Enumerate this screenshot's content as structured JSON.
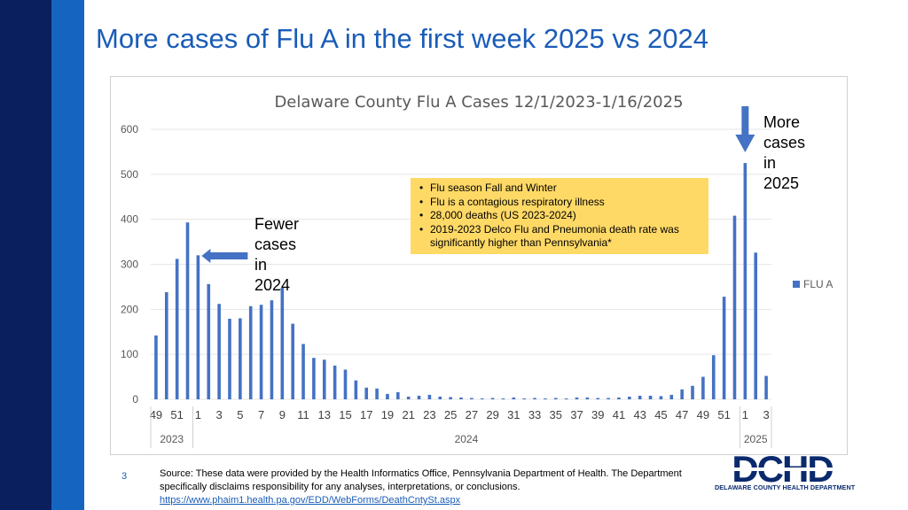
{
  "slide": {
    "title": "More cases of Flu A in the first week 2025 vs 2024",
    "page_number": "3",
    "source_text": "Source: These data were provided by the Health Informatics Office, Pennsylvania Department of Health. The Department specifically disclaims responsibility for any analyses, interpretations, or conclusions.",
    "source_link": "https://www.phaim1.health.pa.gov/EDD/WebForms/DeathCntySt.aspx",
    "logo_text": "DELAWARE COUNTY HEALTH DEPARTMENT",
    "logo_letters": "DCHD"
  },
  "callouts": {
    "fewer": [
      "Fewer",
      "cases",
      "in",
      "2024"
    ],
    "more": [
      "More",
      "cases",
      "in",
      "2025"
    ]
  },
  "info_box": {
    "items": [
      "Flu season Fall and Winter",
      "Flu is a contagious respiratory illness",
      "28,000 deaths (US 2023-2024)",
      "2019-2023 Delco Flu and Pneumonia death rate was significantly higher than Pennsylvania*"
    ]
  },
  "colors": {
    "bar": "#4472c4",
    "title": "#1a5cb8",
    "arrow": "#4472c4",
    "info_box": "#ffd966"
  },
  "chart_data": {
    "type": "bar",
    "title": "Delaware County Flu A Cases 12/1/2023-1/16/2025",
    "legend": "FLU A",
    "legend_position": "right",
    "ylim": [
      0,
      600
    ],
    "yticks": [
      0,
      100,
      200,
      300,
      400,
      500,
      600
    ],
    "weeks": [
      49,
      50,
      51,
      52,
      1,
      2,
      3,
      4,
      5,
      6,
      7,
      8,
      9,
      10,
      11,
      12,
      13,
      14,
      15,
      16,
      17,
      18,
      19,
      20,
      21,
      22,
      23,
      24,
      25,
      26,
      27,
      28,
      29,
      30,
      31,
      32,
      33,
      34,
      35,
      36,
      37,
      38,
      39,
      40,
      41,
      42,
      43,
      44,
      45,
      46,
      47,
      48,
      49,
      50,
      51,
      52,
      1,
      2,
      3
    ],
    "values": [
      142,
      238,
      312,
      393,
      320,
      256,
      212,
      179,
      180,
      207,
      210,
      220,
      248,
      168,
      123,
      92,
      88,
      75,
      66,
      42,
      26,
      24,
      12,
      16,
      6,
      8,
      10,
      6,
      5,
      4,
      3,
      2,
      3,
      2,
      4,
      2,
      3,
      2,
      3,
      2,
      4,
      4,
      3,
      3,
      4,
      6,
      8,
      8,
      7,
      10,
      22,
      30,
      50,
      98,
      228,
      408,
      525,
      326,
      52
    ],
    "xtick_labels": [
      "49",
      "51",
      "1",
      "3",
      "5",
      "7",
      "9",
      "11",
      "13",
      "15",
      "17",
      "19",
      "21",
      "23",
      "25",
      "27",
      "29",
      "31",
      "33",
      "35",
      "37",
      "39",
      "41",
      "43",
      "45",
      "47",
      "49",
      "51",
      "1",
      "3"
    ],
    "year_groups": [
      {
        "label": "2023",
        "start": 0,
        "end": 3
      },
      {
        "label": "2024",
        "start": 4,
        "end": 55
      },
      {
        "label": "2025",
        "start": 56,
        "end": 58
      }
    ]
  }
}
